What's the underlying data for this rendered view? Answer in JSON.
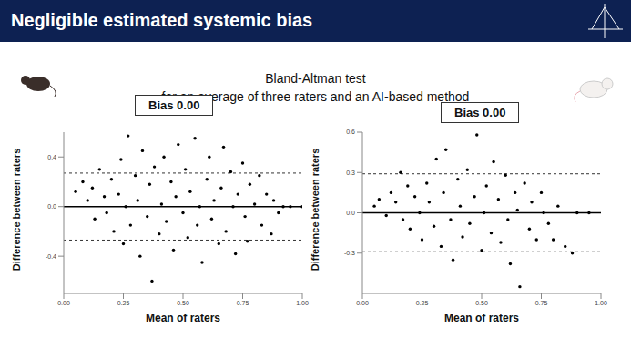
{
  "slide": {
    "title": "Negligible estimated systemic bias",
    "subtitle": [
      "Bland-Altman test",
      "for an average of three raters and an AI-based method"
    ]
  },
  "chart_data": [
    {
      "type": "scatter",
      "annotation": "Bias 0.00",
      "x_label": "Mean of raters",
      "y_label": "Difference between raters",
      "color": "#000000",
      "marker": "circle",
      "bias": 0,
      "limits_of_agreement": [
        -0.27,
        0.27
      ],
      "xlim": [
        0,
        1
      ],
      "xticks": [
        {
          "value": 0,
          "label": "0.00"
        },
        {
          "value": 0.25,
          "label": "0.25"
        },
        {
          "value": 0.5,
          "label": "0.50"
        },
        {
          "value": 0.75,
          "label": "0.75"
        },
        {
          "value": 1,
          "label": "1.00"
        }
      ],
      "ylim": [
        -0.7,
        0.6
      ],
      "yticks": [
        -0.4,
        {
          "value": 0,
          "label": "0.0"
        },
        0.4
      ],
      "x": [
        0.05,
        0.08,
        0.1,
        0.12,
        0.13,
        0.15,
        0.17,
        0.18,
        0.2,
        0.21,
        0.23,
        0.24,
        0.25,
        0.26,
        0.27,
        0.28,
        0.3,
        0.31,
        0.32,
        0.33,
        0.35,
        0.36,
        0.37,
        0.38,
        0.4,
        0.41,
        0.42,
        0.43,
        0.45,
        0.46,
        0.47,
        0.48,
        0.5,
        0.51,
        0.52,
        0.53,
        0.55,
        0.56,
        0.57,
        0.58,
        0.6,
        0.61,
        0.62,
        0.63,
        0.65,
        0.66,
        0.67,
        0.68,
        0.7,
        0.71,
        0.72,
        0.73,
        0.75,
        0.76,
        0.77,
        0.78,
        0.8,
        0.82,
        0.83,
        0.85,
        0.87,
        0.88,
        0.9,
        0.92,
        0.95,
        1.0
      ],
      "values": [
        0.12,
        0.2,
        0.05,
        0.15,
        -0.1,
        0.3,
        0.08,
        -0.05,
        0.22,
        -0.2,
        0.1,
        0.38,
        -0.3,
        0.0,
        0.57,
        -0.15,
        0.25,
        0.05,
        -0.4,
        0.45,
        -0.08,
        0.18,
        -0.6,
        0.32,
        -0.22,
        0.02,
        0.4,
        -0.12,
        0.2,
        -0.35,
        0.08,
        0.5,
        -0.05,
        0.3,
        -0.25,
        0.12,
        0.55,
        -0.15,
        0.0,
        -0.45,
        0.22,
        0.4,
        -0.1,
        0.05,
        -0.3,
        0.15,
        0.48,
        -0.2,
        0.28,
        0.0,
        -0.38,
        0.1,
        0.35,
        -0.08,
        -0.28,
        0.18,
        0.02,
        0.25,
        -0.15,
        0.1,
        -0.22,
        0.05,
        -0.05,
        0.0,
        0.0,
        0.0
      ]
    },
    {
      "type": "scatter",
      "annotation": "Bias 0.00",
      "x_label": "Mean of raters",
      "y_label": "Difference between raters",
      "color": "#000000",
      "marker": "circle",
      "bias": 0,
      "limits_of_agreement": [
        -0.29,
        0.29
      ],
      "xlim": [
        0,
        1
      ],
      "xticks": [
        {
          "value": 0,
          "label": "0.00"
        },
        {
          "value": 0.25,
          "label": "0.25"
        },
        {
          "value": 0.5,
          "label": "0.50"
        },
        {
          "value": 0.75,
          "label": "0.75"
        },
        {
          "value": 1,
          "label": "1.00"
        }
      ],
      "ylim": [
        -0.6,
        0.6
      ],
      "yticks": [
        -0.3,
        {
          "value": 0,
          "label": "0.0"
        },
        0.3,
        0.6
      ],
      "x": [
        0.05,
        0.07,
        0.1,
        0.12,
        0.14,
        0.16,
        0.17,
        0.19,
        0.2,
        0.22,
        0.24,
        0.25,
        0.27,
        0.28,
        0.3,
        0.31,
        0.33,
        0.34,
        0.35,
        0.37,
        0.38,
        0.4,
        0.41,
        0.42,
        0.44,
        0.45,
        0.47,
        0.48,
        0.5,
        0.51,
        0.52,
        0.54,
        0.55,
        0.57,
        0.58,
        0.6,
        0.61,
        0.62,
        0.64,
        0.65,
        0.66,
        0.68,
        0.7,
        0.71,
        0.73,
        0.75,
        0.76,
        0.78,
        0.8,
        0.82,
        0.85,
        0.88,
        0.9,
        0.95
      ],
      "values": [
        0.05,
        0.1,
        -0.02,
        0.15,
        0.08,
        0.3,
        -0.05,
        0.2,
        -0.12,
        0.12,
        0.0,
        -0.2,
        0.22,
        0.08,
        -0.1,
        0.4,
        -0.25,
        0.15,
        0.47,
        -0.05,
        -0.35,
        0.25,
        0.05,
        -0.18,
        0.32,
        -0.08,
        0.12,
        0.58,
        -0.28,
        0.0,
        0.2,
        -0.15,
        0.38,
        0.1,
        -0.22,
        0.28,
        -0.05,
        -0.38,
        0.15,
        0.02,
        -0.55,
        0.22,
        -0.12,
        0.08,
        -0.2,
        0.15,
        0.0,
        -0.08,
        -0.2,
        0.05,
        -0.25,
        -0.3,
        0.0,
        0.0
      ]
    }
  ]
}
